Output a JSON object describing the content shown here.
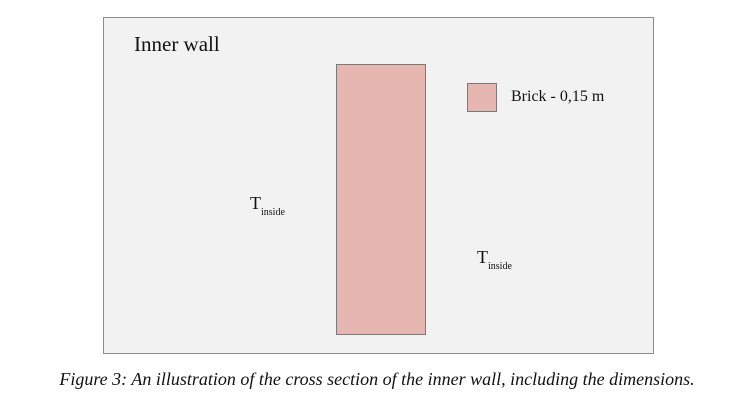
{
  "diagram": {
    "title": "Inner wall",
    "legend": {
      "label": "Brick - 0,15 m",
      "swatch_color": "#e6b6b0"
    },
    "temperatures": [
      {
        "symbol": "T",
        "subscript": "inside"
      },
      {
        "symbol": "T",
        "subscript": "inside"
      }
    ],
    "background_color": "#f2f2f2"
  },
  "caption": "Figure 3: An illustration of the cross section of the inner wall, including the dimensions."
}
